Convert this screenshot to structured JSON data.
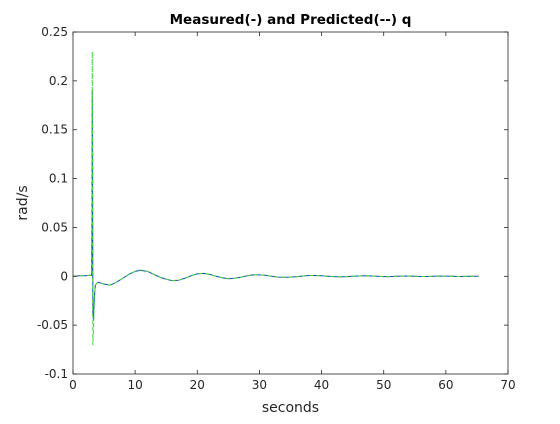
{
  "chart_data": {
    "type": "line",
    "title": "Measured(-) and Predicted(--) q",
    "xlabel": "seconds",
    "ylabel": "rad/s",
    "xlim": [
      0,
      70
    ],
    "ylim": [
      -0.1,
      0.25
    ],
    "xticks": [
      0,
      10,
      20,
      30,
      40,
      50,
      60,
      70
    ],
    "yticks": [
      -0.1,
      -0.05,
      0,
      0.05,
      0.1,
      0.15,
      0.2,
      0.25
    ],
    "xtick_labels": [
      "0",
      "10",
      "20",
      "30",
      "40",
      "50",
      "60",
      "70"
    ],
    "ytick_labels": [
      "-0.1",
      "-0.05",
      "0",
      "0.05",
      "0.1",
      "0.15",
      "0.2",
      "0.25"
    ],
    "grid": false,
    "box": true,
    "series": [
      {
        "style": "solid",
        "color": "#1f3fbf",
        "x": [
          0,
          1,
          2,
          2.8,
          3.0,
          3.05,
          3.1,
          3.15,
          3.2,
          3.3,
          3.45,
          3.6,
          4,
          5,
          6,
          7,
          8,
          9,
          10,
          10.8,
          12,
          13,
          14,
          15,
          16,
          17,
          18,
          19,
          20,
          21,
          22,
          23,
          24,
          25,
          26,
          27,
          28,
          29,
          30,
          31,
          32,
          33,
          34,
          35,
          36,
          37,
          38,
          39,
          40,
          41,
          42,
          43,
          44,
          45,
          46,
          47,
          48,
          49,
          50,
          51,
          52,
          53,
          54,
          55,
          56,
          57,
          58,
          59,
          60,
          61,
          62,
          63,
          64,
          65.3
        ],
        "y": [
          0.0,
          0.0005,
          0.0005,
          0.001,
          0.001,
          0.05,
          0.19,
          0.12,
          -0.04,
          -0.045,
          -0.02,
          -0.009,
          -0.006,
          -0.008,
          -0.009,
          -0.006,
          -0.002,
          0.002,
          0.005,
          0.006,
          0.005,
          0.002,
          -0.001,
          -0.003,
          -0.0045,
          -0.004,
          -0.002,
          0.0005,
          0.0025,
          0.003,
          0.002,
          0.0,
          -0.0015,
          -0.0025,
          -0.002,
          -0.001,
          0.0005,
          0.0015,
          0.0015,
          0.001,
          0.0,
          -0.0008,
          -0.001,
          -0.0008,
          -0.0003,
          0.0003,
          0.0008,
          0.0008,
          0.0005,
          0.0,
          -0.0004,
          -0.0006,
          -0.0004,
          0.0,
          0.0003,
          0.0005,
          0.0003,
          0.0,
          -0.0003,
          -0.0003,
          0.0,
          0.0002,
          0.0003,
          0.0001,
          -0.0002,
          -0.0002,
          0.0,
          0.0002,
          0.0002,
          0.0,
          -0.0002,
          -0.0001,
          0.0001,
          0.0
        ]
      },
      {
        "style": "dashed",
        "color": "#33dd33",
        "x": [
          0,
          1,
          2,
          2.8,
          3.0,
          3.05,
          3.1,
          3.15,
          3.2,
          3.3,
          3.45,
          3.6,
          4,
          5,
          6,
          7,
          8,
          9,
          10,
          10.8,
          12,
          13,
          14,
          15,
          16,
          17,
          18,
          19,
          20,
          21,
          22,
          23,
          24,
          25,
          26,
          27,
          28,
          29,
          30,
          31,
          32,
          33,
          34,
          35,
          36,
          37,
          38,
          39,
          40,
          41,
          42,
          43,
          44,
          45,
          46,
          47,
          48,
          49,
          50,
          51,
          52,
          53,
          54,
          55,
          56,
          57,
          58,
          59,
          60,
          61,
          62,
          63,
          64,
          65.3
        ],
        "y": [
          0.0,
          0.0005,
          0.0005,
          0.001,
          0.001,
          0.07,
          0.23,
          0.1,
          -0.07,
          -0.055,
          -0.02,
          -0.009,
          -0.006,
          -0.008,
          -0.009,
          -0.006,
          -0.002,
          0.002,
          0.005,
          0.0065,
          0.005,
          0.002,
          -0.001,
          -0.003,
          -0.0045,
          -0.004,
          -0.002,
          0.0005,
          0.0025,
          0.003,
          0.002,
          0.0,
          -0.0015,
          -0.0025,
          -0.002,
          -0.001,
          0.0005,
          0.0015,
          0.0015,
          0.001,
          0.0,
          -0.0008,
          -0.001,
          -0.0008,
          -0.0003,
          0.0003,
          0.0008,
          0.0008,
          0.0005,
          0.0,
          -0.0004,
          -0.0006,
          -0.0004,
          0.0,
          0.0003,
          0.0005,
          0.0003,
          0.0,
          -0.0003,
          -0.0003,
          0.0,
          0.0002,
          0.0003,
          0.0001,
          -0.0002,
          -0.0002,
          0.0,
          0.0002,
          0.0002,
          0.0,
          -0.0002,
          -0.0001,
          0.0001,
          0.0
        ]
      }
    ]
  }
}
